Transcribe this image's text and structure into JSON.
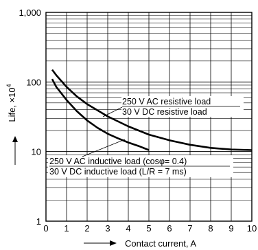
{
  "chart_data": {
    "type": "line",
    "xlabel": "Contact current, A",
    "ylabel": "Life, ×10",
    "ylabel_superscript": "4",
    "x_ticks": [
      "0",
      "1",
      "2",
      "3",
      "4",
      "5",
      "6",
      "7",
      "8",
      "9",
      "10"
    ],
    "y_ticks": [
      "1",
      "10",
      "100",
      "1,000"
    ],
    "xlim": [
      0,
      10
    ],
    "ylim": [
      1,
      1000
    ],
    "y_scale": "log",
    "grid": true,
    "series": [
      {
        "name": "250 V AC resistive load / 30 V DC resistive load",
        "x": [
          0.3,
          0.5,
          1,
          1.5,
          2,
          3,
          4,
          5,
          6,
          7,
          8,
          9,
          10
        ],
        "y": [
          150,
          125,
          85,
          62,
          48,
          32,
          23,
          17.5,
          14.5,
          12.5,
          11.3,
          10.7,
          10.5
        ]
      },
      {
        "name": "250 V AC inductive load (cosφ= 0.4) / 30 V DC inductive load (L/R = 7 ms)",
        "x": [
          0.3,
          0.5,
          1,
          1.5,
          2,
          2.5,
          3,
          3.5,
          4,
          4.5,
          5
        ],
        "y": [
          110,
          85,
          55,
          38,
          28,
          22,
          18,
          15.5,
          13.5,
          12,
          10.5
        ]
      }
    ],
    "annotations": [
      "250 V AC resistive load",
      "30 V DC resistive load",
      "250 V AC inductive load (cosφ= 0.4)",
      "30 V DC  inductive load (L/R = 7 ms)"
    ]
  }
}
